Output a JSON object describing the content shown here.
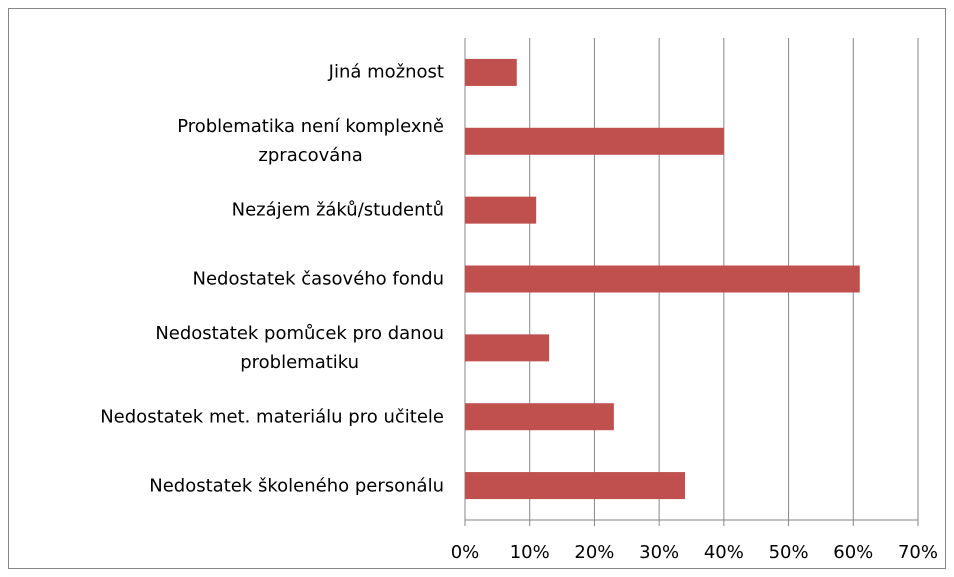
{
  "chart_data": {
    "type": "bar",
    "orientation": "horizontal",
    "categories": [
      "Jiná možnost",
      "Problematika není komplexně\nzpracována",
      "Nezájem žáků/studentů",
      "Nedostatek časového fondu",
      "Nedostatek pomůcek pro danou\nproblematiku",
      "Nedostatek met. materiálu pro učitele",
      "Nedostatek školeného personálu"
    ],
    "values": [
      8,
      40,
      11,
      61,
      13,
      23,
      34
    ],
    "color": "#c0504d",
    "xlim": [
      0,
      70
    ],
    "xticks": [
      {
        "value": 0,
        "label": "0%"
      },
      {
        "value": 10,
        "label": "10%"
      },
      {
        "value": 20,
        "label": "20%"
      },
      {
        "value": 30,
        "label": "30%"
      },
      {
        "value": 40,
        "label": "40%"
      },
      {
        "value": 50,
        "label": "50%"
      },
      {
        "value": 60,
        "label": "60%"
      },
      {
        "value": 70,
        "label": "70%"
      }
    ],
    "grid": true
  }
}
